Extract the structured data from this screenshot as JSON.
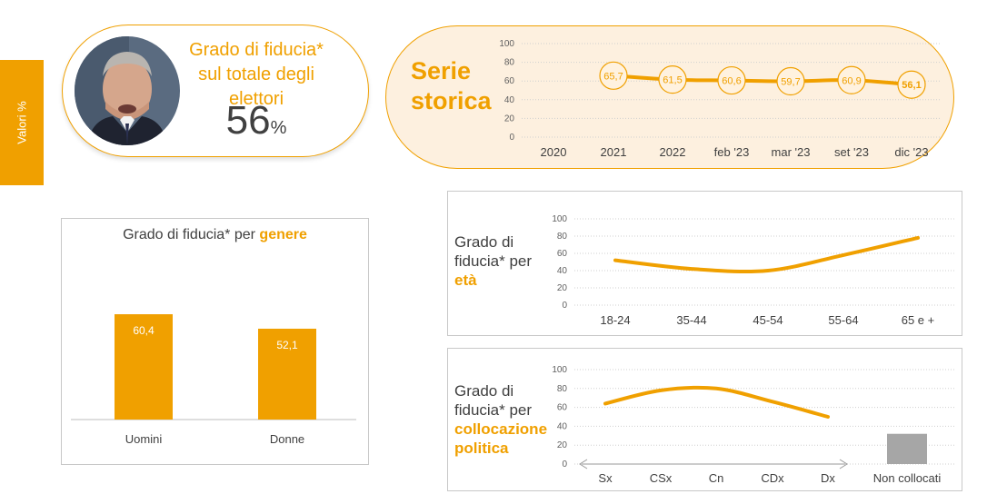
{
  "side_tab": "Valori %",
  "kpi": {
    "title": "Grado di fiducia* sul totale degli elettori",
    "value": "56",
    "unit": "%",
    "photo": "portrait-photo"
  },
  "colors": {
    "accent": "#f0a000",
    "grey": "#a6a6a6",
    "light_bg": "#fdf0df"
  },
  "chart_data": [
    {
      "type": "line",
      "title": "Serie storica",
      "x": [
        "2020",
        "2021",
        "2022",
        "feb '23",
        "mar '23",
        "set '23",
        "dic '23"
      ],
      "values": [
        null,
        65.7,
        61.5,
        60.6,
        59.7,
        60.9,
        56.1
      ],
      "data_labels": [
        "",
        "65,7",
        "61,5",
        "60,6",
        "59,7",
        "60,9",
        "56,1"
      ],
      "yticks": [
        "100",
        "80",
        "60",
        "40",
        "20",
        "0"
      ],
      "ylim": [
        0,
        100
      ]
    },
    {
      "type": "bar",
      "title_prefix": "Grado di fiducia* per",
      "title_highlight": "genere",
      "categories": [
        "Uomini",
        "Donne"
      ],
      "values": [
        60.4,
        52.1
      ],
      "data_labels": [
        "60,4",
        "52,1"
      ],
      "ylim": [
        0,
        100
      ]
    },
    {
      "type": "line",
      "title_line1": "Grado di",
      "title_line2": "fiducia* per",
      "title_highlight": "età",
      "categories": [
        "18-24",
        "35-44",
        "45-54",
        "55-64",
        "65 e +"
      ],
      "values": [
        52,
        42,
        40,
        58,
        78
      ],
      "yticks": [
        "100",
        "80",
        "60",
        "40",
        "20",
        "0"
      ],
      "ylim": [
        0,
        100
      ]
    },
    {
      "type": "line",
      "title_line1": "Grado di",
      "title_line2": "fiducia* per",
      "title_highlight_line1": "collocazione",
      "title_highlight_line2": "politica",
      "categories": [
        "Sx",
        "CSx",
        "Cn",
        "CDx",
        "Dx"
      ],
      "values": [
        64,
        78,
        80,
        66,
        50
      ],
      "extra_bar": {
        "category": "Non collocati",
        "value": 32
      },
      "yticks": [
        "100",
        "80",
        "60",
        "40",
        "20",
        "0"
      ],
      "ylim": [
        0,
        100
      ]
    }
  ]
}
